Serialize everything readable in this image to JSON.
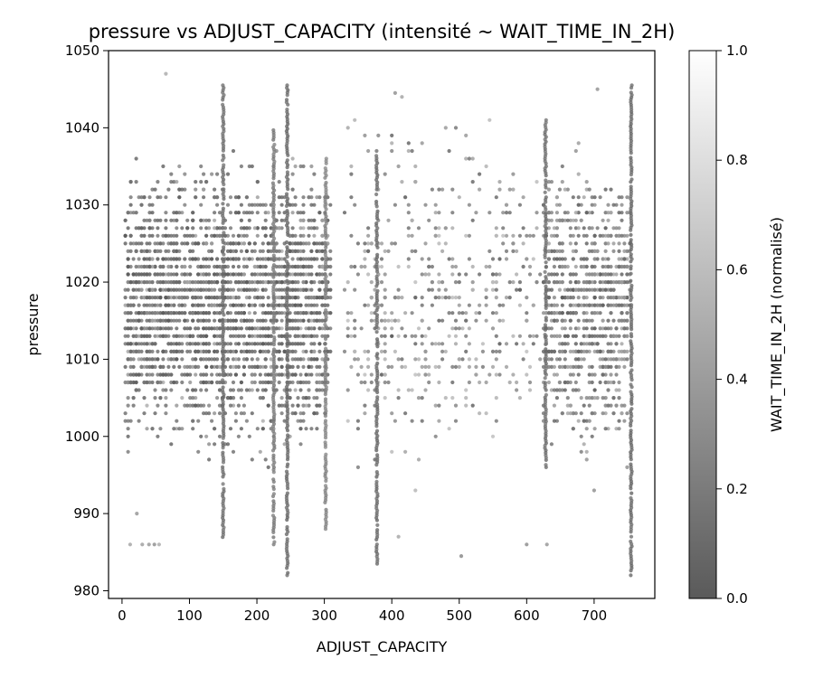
{
  "chart_data": {
    "type": "scatter",
    "title": "pressure vs ADJUST_CAPACITY (intensité ~ WAIT_TIME_IN_2H)",
    "xlabel": "ADJUST_CAPACITY",
    "ylabel": "pressure",
    "xlim": [
      -20,
      790
    ],
    "ylim": [
      979,
      1050
    ],
    "xticks": [
      0,
      100,
      200,
      300,
      400,
      500,
      600,
      700
    ],
    "yticks": [
      980,
      990,
      1000,
      1010,
      1020,
      1030,
      1040,
      1050
    ],
    "grid": false,
    "colorbar": {
      "label": "WAIT_TIME_IN_2H (normalisé)",
      "range": [
        0,
        1
      ],
      "ticks": [
        "0.0",
        "0.2",
        "0.4",
        "0.6",
        "0.8",
        "1.0"
      ],
      "colors": [
        "#5a5a5a",
        "#ffffff"
      ]
    },
    "columns": [
      {
        "x": 150,
        "ymin": 986,
        "ymax": 1045.5,
        "intensity": 0.08
      },
      {
        "x": 245,
        "ymin": 982,
        "ymax": 1045.5,
        "intensity": 0.05
      },
      {
        "x": 378,
        "ymin": 983.5,
        "ymax": 1037,
        "intensity": 0.05
      },
      {
        "x": 628,
        "ymin": 996,
        "ymax": 1041,
        "intensity": 0.08
      },
      {
        "x": 755,
        "ymin": 982,
        "ymax": 1045.5,
        "intensity": 0.05
      },
      {
        "x": 225,
        "ymin": 986,
        "ymax": 1040,
        "intensity": 0.15
      },
      {
        "x": 302,
        "ymin": 988,
        "ymax": 1036,
        "intensity": 0.2
      }
    ],
    "clusters": [
      {
        "xmin": 5,
        "xmax": 310,
        "ymin": 990,
        "ymax": 1040,
        "density": "high"
      },
      {
        "xmin": 310,
        "xmax": 620,
        "ymin": 983,
        "ymax": 1045,
        "density": "low"
      },
      {
        "xmin": 620,
        "xmax": 760,
        "ymin": 985,
        "ymax": 1045,
        "density": "medium"
      }
    ],
    "outliers": [
      {
        "x": 30,
        "y": 986
      },
      {
        "x": 40,
        "y": 986
      },
      {
        "x": 48,
        "y": 986
      },
      {
        "x": 55,
        "y": 986
      },
      {
        "x": 12,
        "y": 986
      },
      {
        "x": 65,
        "y": 1047
      },
      {
        "x": 415,
        "y": 1044
      },
      {
        "x": 405,
        "y": 1044.5
      },
      {
        "x": 705,
        "y": 1045
      },
      {
        "x": 503,
        "y": 984.5
      },
      {
        "x": 410,
        "y": 987
      },
      {
        "x": 600,
        "y": 986
      },
      {
        "x": 630,
        "y": 986
      },
      {
        "x": 480,
        "y": 1040
      },
      {
        "x": 22,
        "y": 990
      },
      {
        "x": 700,
        "y": 993
      }
    ]
  }
}
